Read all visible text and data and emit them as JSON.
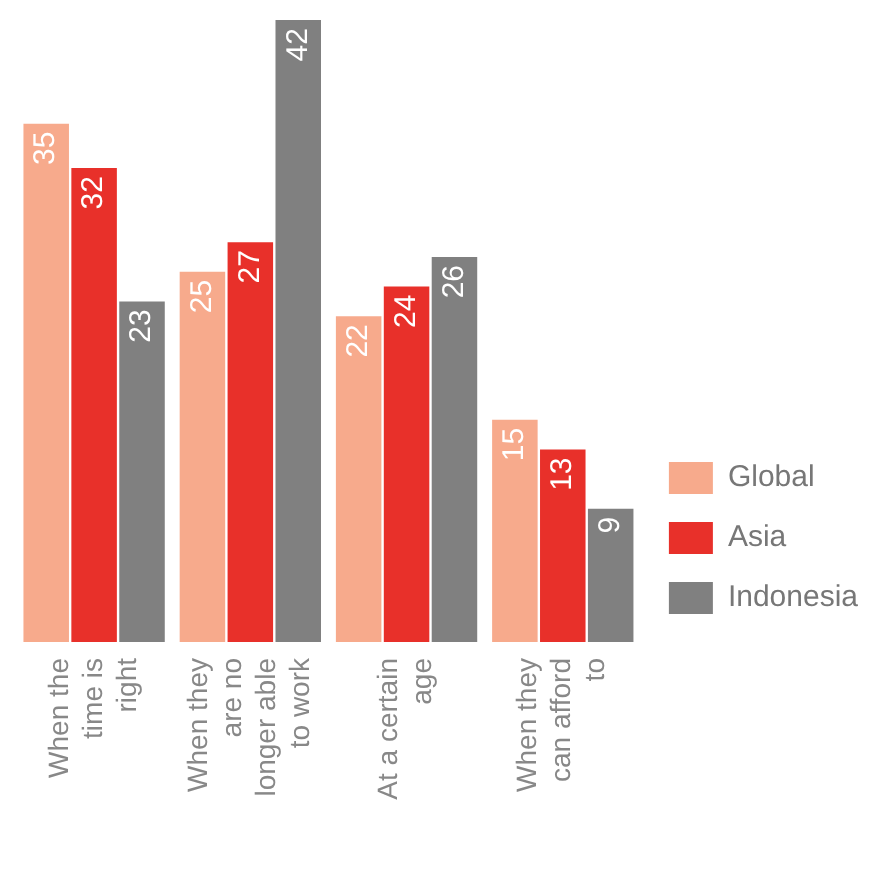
{
  "chart_data": {
    "type": "bar",
    "categories": [
      "When the time is right",
      "When they are no longer able to work",
      "At a certain age",
      "When they can afford to"
    ],
    "series": [
      {
        "name": "Global",
        "color": "#f7aa8c",
        "values": [
          35,
          25,
          22,
          15
        ]
      },
      {
        "name": "Asia",
        "color": "#e8302a",
        "values": [
          32,
          27,
          24,
          13
        ]
      },
      {
        "name": "Indonesia",
        "color": "#808080",
        "values": [
          23,
          42,
          26,
          9
        ]
      }
    ],
    "ylim": [
      0,
      42
    ],
    "tick_labels": "x",
    "data_labels": true,
    "legend": "right",
    "grid": false
  }
}
